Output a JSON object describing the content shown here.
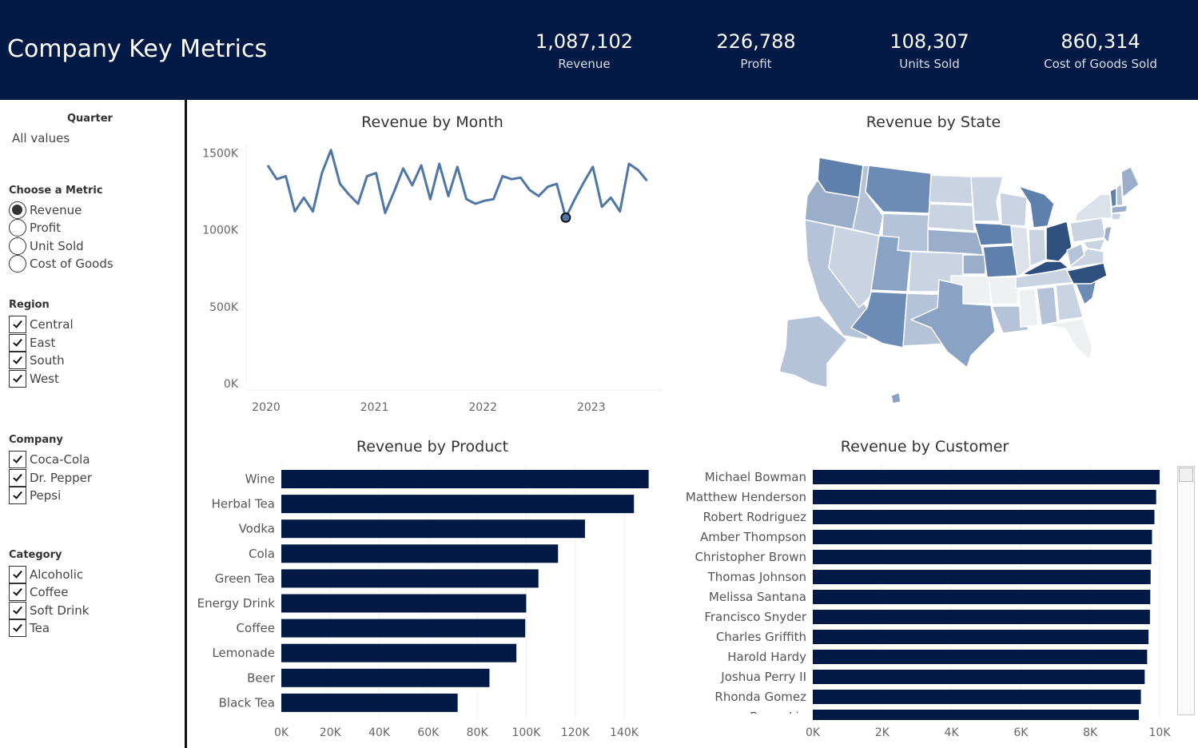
{
  "header": {
    "title": "Company Key Metrics",
    "kpis": [
      {
        "value": "1,087,102",
        "label": "Revenue"
      },
      {
        "value": "226,788",
        "label": "Profit"
      },
      {
        "value": "108,307",
        "label": "Units Sold"
      },
      {
        "value": "860,314",
        "label": "Cost of Goods Sold"
      }
    ]
  },
  "filters": {
    "quarter": {
      "title": "Quarter",
      "value": "All values"
    },
    "metric": {
      "title": "Choose a Metric",
      "options": [
        "Revenue",
        "Profit",
        "Unit Sold",
        "Cost of Goods"
      ],
      "selected": "Revenue"
    },
    "region": {
      "title": "Region",
      "options": [
        "Central",
        "East",
        "South",
        "West"
      ]
    },
    "company": {
      "title": "Company",
      "options": [
        "Coca-Cola",
        "Dr. Pepper",
        "Pepsi"
      ]
    },
    "category": {
      "title": "Category",
      "options": [
        "Alcoholic",
        "Coffee",
        "Soft Drink",
        "Tea"
      ]
    }
  },
  "colors": {
    "navy": "#021a45",
    "line": "#4e76a6",
    "map_dark": "#2f4f7f",
    "map_light": "#eef0f2"
  },
  "chart_data": [
    {
      "type": "line",
      "title": "Revenue by Month",
      "x_ticks": [
        "2020",
        "2021",
        "2022",
        "2023"
      ],
      "y_ticks": [
        "1500K",
        "1000K",
        "500K",
        "0K"
      ],
      "ylim": [
        0,
        1560000
      ],
      "values": [
        1420000,
        1330000,
        1350000,
        1120000,
        1210000,
        1120000,
        1370000,
        1520000,
        1300000,
        1230000,
        1170000,
        1350000,
        1370000,
        1110000,
        1250000,
        1400000,
        1290000,
        1420000,
        1200000,
        1430000,
        1220000,
        1410000,
        1200000,
        1170000,
        1190000,
        1200000,
        1350000,
        1330000,
        1340000,
        1260000,
        1220000,
        1280000,
        1300000,
        1080000,
        1200000,
        1310000,
        1410000,
        1150000,
        1210000,
        1120000,
        1430000,
        1390000,
        1320000
      ],
      "highlight_index": 33,
      "grid": false
    },
    {
      "type": "bar",
      "title": "Revenue by Product",
      "orientation": "horizontal",
      "categories": [
        "Wine",
        "Herbal Tea",
        "Vodka",
        "Cola",
        "Green Tea",
        "Energy Drink",
        "Coffee",
        "Lemonade",
        "Beer",
        "Black Tea"
      ],
      "values": [
        150000,
        144000,
        124000,
        113000,
        105000,
        100000,
        99600,
        96000,
        85000,
        72000
      ],
      "x_ticks": [
        "0K",
        "20K",
        "40K",
        "60K",
        "80K",
        "100K",
        "120K",
        "140K"
      ],
      "xlim": [
        0,
        156000
      ]
    },
    {
      "type": "bar",
      "title": "Revenue by Customer",
      "orientation": "horizontal",
      "categories": [
        "Michael Bowman",
        "Matthew Henderson",
        "Robert Rodriguez",
        "Amber Thompson",
        "Christopher Brown",
        "Thomas Johnson",
        "Melissa Santana",
        "Francisco Snyder",
        "Charles Griffith",
        "Harold Hardy",
        "Joshua Perry II",
        "Rhonda Gomez",
        "Bryan Lin"
      ],
      "values": [
        10000,
        9900,
        9850,
        9780,
        9760,
        9740,
        9730,
        9720,
        9680,
        9640,
        9570,
        9460,
        9400
      ],
      "x_ticks": [
        "0K",
        "2K",
        "4K",
        "6K",
        "8K",
        "10K"
      ],
      "xlim": [
        0,
        10000
      ]
    },
    {
      "type": "map",
      "title": "Revenue by State"
    }
  ]
}
